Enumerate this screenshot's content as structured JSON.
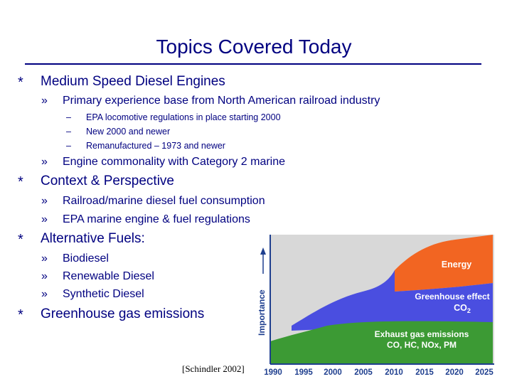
{
  "slide": {
    "title": "Topics Covered Today"
  },
  "bullets": {
    "b1": {
      "marker": "*",
      "text": "Medium Speed Diesel Engines"
    },
    "b1_1": {
      "marker": "»",
      "text": "Primary experience base from North American railroad industry"
    },
    "b1_1_1": {
      "marker": "–",
      "text": "EPA locomotive regulations in place starting 2000"
    },
    "b1_1_2": {
      "marker": "–",
      "text": "New 2000 and newer"
    },
    "b1_1_3": {
      "marker": "–",
      "text": "Remanufactured – 1973 and newer"
    },
    "b1_2": {
      "marker": "»",
      "text": "Engine commonality with Category 2 marine"
    },
    "b2": {
      "marker": "*",
      "text": "Context & Perspective"
    },
    "b2_1": {
      "marker": "»",
      "text": "Railroad/marine diesel fuel consumption"
    },
    "b2_2": {
      "marker": "»",
      "text": "EPA marine engine & fuel regulations"
    },
    "b3": {
      "marker": "*",
      "text": "Alternative Fuels:"
    },
    "b3_1": {
      "marker": "»",
      "text": "Biodiesel"
    },
    "b3_2": {
      "marker": "»",
      "text": "Renewable Diesel"
    },
    "b3_3": {
      "marker": "»",
      "text": "Synthetic Diesel"
    },
    "b4": {
      "marker": "*",
      "text": "Greenhouse gas emissions"
    }
  },
  "figure": {
    "citation": "[Schindler 2002]",
    "y_axis_label": "Importance",
    "x_ticks": [
      "1990",
      "1995",
      "2000",
      "2005",
      "2010",
      "2015",
      "2020",
      "2025"
    ],
    "bands": {
      "energy": {
        "label": "Energy",
        "color": "#f26522"
      },
      "greenhouse": {
        "label_line1": "Greenhouse effect",
        "label_line2": "CO",
        "label_sub": "2",
        "color": "#4a4ee0"
      },
      "exhaust": {
        "label_line1": "Exhaust gas emissions",
        "label_line2": "CO, HC, NOx, PM",
        "color": "#3c9a34"
      }
    },
    "colors": {
      "background": "#d8d8d8",
      "axis": "#1f3f8f",
      "tick_text": "#1f3f8f"
    }
  }
}
